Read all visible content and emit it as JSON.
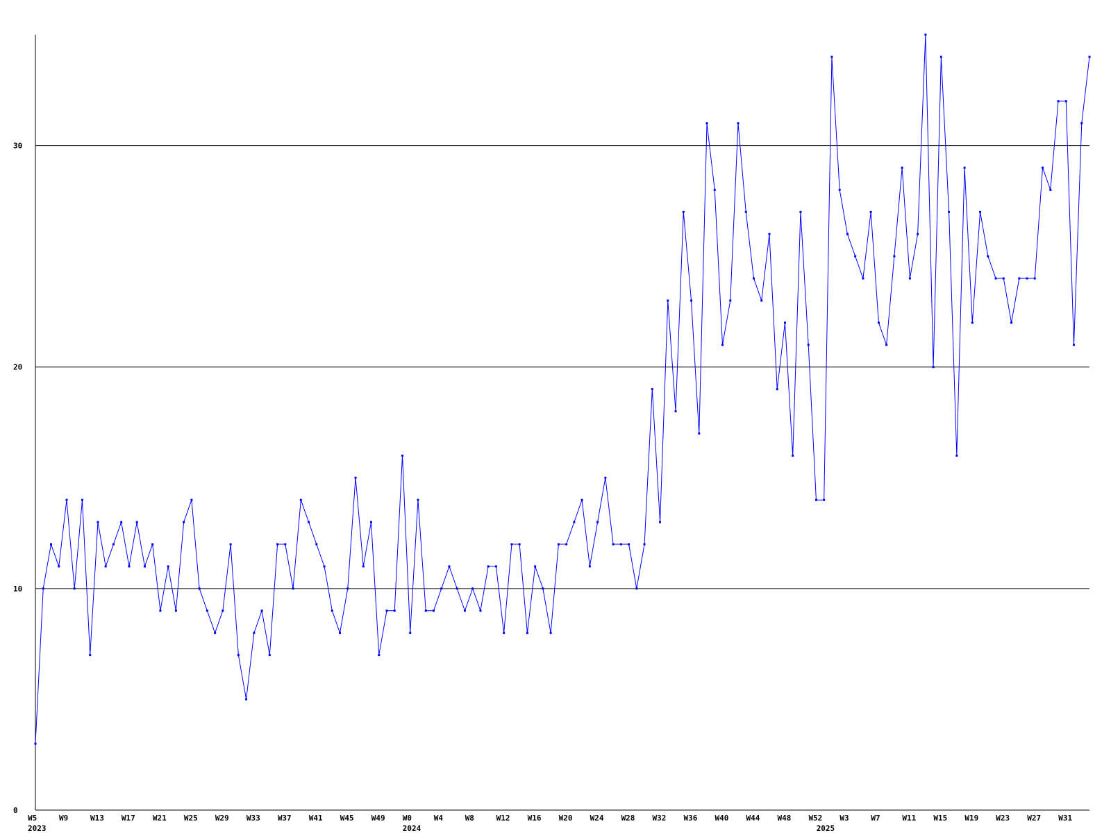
{
  "chart_data": {
    "type": "line",
    "title": "",
    "xlabel": "",
    "ylabel": "",
    "ylim": [
      0,
      35
    ],
    "y_ticks": [
      0,
      10,
      20,
      30
    ],
    "grid": {
      "horizontal": true,
      "vertical": false
    },
    "x_tick_labels": [
      "W5",
      "W9",
      "W13",
      "W17",
      "W21",
      "W25",
      "W29",
      "W33",
      "W37",
      "W41",
      "W45",
      "W49",
      "W0",
      "W4",
      "W8",
      "W12",
      "W16",
      "W20",
      "W24",
      "W28",
      "W32",
      "W36",
      "W40",
      "W44",
      "W48",
      "W52",
      "W3",
      "W7",
      "W11",
      "W15",
      "W19",
      "W23",
      "W27",
      "W31"
    ],
    "year_labels": [
      {
        "label": "2023",
        "x": 0
      },
      {
        "label": "2024",
        "x": 48
      },
      {
        "label": "2025",
        "x": 101
      }
    ],
    "colors": {
      "line": "#0000ff",
      "marker": "#0000ff",
      "grid": "#000000",
      "axis": "#000000"
    },
    "series": [
      {
        "values": [
          3,
          10,
          12,
          11,
          14,
          10,
          14,
          7,
          13,
          11,
          12,
          13,
          11,
          13,
          11,
          12,
          9,
          11,
          9,
          13,
          14,
          10,
          9,
          8,
          9,
          12,
          7,
          5,
          8,
          9,
          7,
          12,
          12,
          10,
          14,
          13,
          12,
          11,
          9,
          8,
          10,
          15,
          11,
          13,
          7,
          9,
          9,
          16,
          8,
          14,
          9,
          9,
          10,
          11,
          10,
          9,
          10,
          9,
          11,
          11,
          8,
          12,
          12,
          8,
          11,
          10,
          8,
          12,
          12,
          13,
          14,
          11,
          13,
          15,
          12,
          12,
          12,
          10,
          12,
          19,
          13,
          23,
          18,
          27,
          23,
          17,
          31,
          28,
          21,
          23,
          31,
          27,
          24,
          23,
          26,
          19,
          22,
          16,
          27,
          21,
          14,
          14,
          34,
          28,
          26,
          25,
          24,
          27,
          22,
          21,
          25,
          29,
          24,
          26,
          35,
          20,
          34,
          27,
          16,
          29,
          22,
          27,
          25,
          24,
          24,
          22,
          24,
          24,
          24,
          29,
          28,
          32,
          32,
          21,
          31,
          34
        ]
      }
    ]
  }
}
